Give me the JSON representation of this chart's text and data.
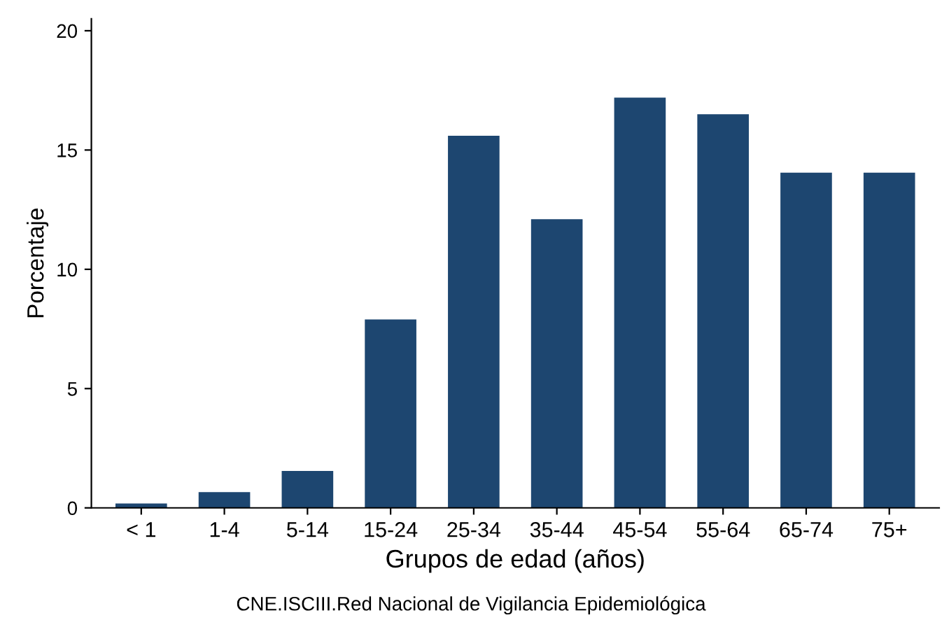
{
  "chart_data": {
    "type": "bar",
    "xlabel": "Grupos de edad (años)",
    "ylabel": "Porcentaje",
    "categories": [
      "< 1",
      "1-4",
      "5-14",
      "15-24",
      "25-34",
      "35-44",
      "45-54",
      "55-64",
      "65-74",
      "75+"
    ],
    "values": [
      0.18,
      0.66,
      1.55,
      7.9,
      15.6,
      12.1,
      17.2,
      16.5,
      14.05,
      14.05
    ],
    "color": "#1d4670",
    "ylim": [
      0,
      20.5
    ],
    "yticks": [
      0,
      5,
      10,
      15,
      20
    ],
    "grid": false,
    "legend": false,
    "annotations": [
      "CNE.ISCIII.Red Nacional de Vigilancia Epidemiológica"
    ]
  }
}
